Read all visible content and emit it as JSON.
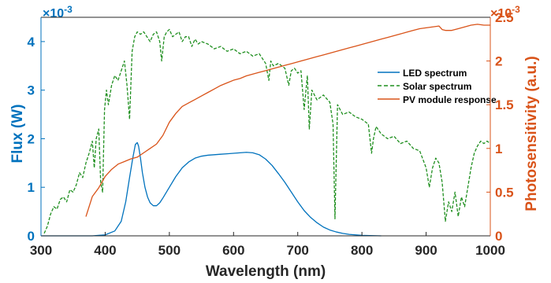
{
  "chart_data": {
    "type": "line",
    "xlabel": "Wavelength (nm)",
    "ylabel_left": "Flux (W)",
    "ylabel_right": "Photosensitivity (a.u.)",
    "left_multiplier": "×10-3",
    "right_multiplier": "×10-3",
    "xlim": [
      300,
      1000
    ],
    "ylim_left": [
      0,
      4.5
    ],
    "ylim_right": [
      0,
      2.5
    ],
    "x_ticks": [
      "300",
      "400",
      "500",
      "600",
      "700",
      "800",
      "900",
      "1000"
    ],
    "y_ticks_left": [
      "0",
      "1",
      "2",
      "3",
      "4"
    ],
    "y_ticks_right": [
      "0",
      "0.5",
      "1",
      "1.5",
      "2",
      "2.5"
    ],
    "legend_position": "right",
    "series": [
      {
        "name": "LED spectrum",
        "axis": "left",
        "style": "solid",
        "color": "#0072bd",
        "x": [
          300,
          380,
          400,
          415,
          425,
          432,
          438,
          443,
          447,
          450,
          452,
          455,
          458,
          462,
          466,
          470,
          475,
          480,
          485,
          490,
          500,
          510,
          520,
          530,
          540,
          550,
          560,
          570,
          580,
          590,
          600,
          610,
          620,
          630,
          640,
          650,
          660,
          670,
          680,
          690,
          700,
          710,
          720,
          730,
          740,
          750,
          760,
          770,
          780,
          800,
          830
        ],
        "y": [
          0,
          0,
          0.02,
          0.1,
          0.3,
          0.7,
          1.2,
          1.6,
          1.88,
          1.92,
          1.85,
          1.6,
          1.3,
          1.0,
          0.8,
          0.68,
          0.62,
          0.62,
          0.68,
          0.78,
          1.0,
          1.22,
          1.4,
          1.52,
          1.6,
          1.64,
          1.66,
          1.67,
          1.68,
          1.69,
          1.7,
          1.71,
          1.72,
          1.71,
          1.67,
          1.58,
          1.45,
          1.28,
          1.1,
          0.9,
          0.7,
          0.52,
          0.38,
          0.27,
          0.18,
          0.12,
          0.08,
          0.05,
          0.03,
          0.01,
          0
        ]
      },
      {
        "name": "Solar spectrum",
        "axis": "left",
        "style": "dashed",
        "color": "#1f8f1f",
        "x": [
          305,
          310,
          315,
          320,
          325,
          330,
          335,
          340,
          345,
          350,
          355,
          360,
          365,
          370,
          375,
          380,
          383,
          386,
          390,
          393,
          396,
          399,
          402,
          405,
          410,
          415,
          420,
          425,
          430,
          434,
          438,
          442,
          446,
          450,
          455,
          460,
          465,
          470,
          475,
          480,
          485,
          488,
          492,
          496,
          500,
          505,
          510,
          515,
          520,
          525,
          530,
          535,
          540,
          545,
          550,
          560,
          570,
          580,
          590,
          600,
          610,
          620,
          630,
          640,
          650,
          655,
          658,
          662,
          670,
          680,
          686,
          690,
          695,
          700,
          705,
          710,
          715,
          718,
          722,
          730,
          740,
          750,
          755,
          758,
          762,
          770,
          780,
          790,
          800,
          810,
          815,
          818,
          822,
          830,
          840,
          850,
          860,
          870,
          880,
          890,
          900,
          905,
          910,
          915,
          920,
          925,
          930,
          935,
          940,
          945,
          950,
          955,
          960,
          965,
          970,
          975,
          980,
          985,
          990,
          995,
          1000
        ],
        "y": [
          0.05,
          0.2,
          0.45,
          0.6,
          0.55,
          0.75,
          0.8,
          0.7,
          0.95,
          0.9,
          1.05,
          1.3,
          1.2,
          1.5,
          1.7,
          1.95,
          1.4,
          2.0,
          2.2,
          1.1,
          0.9,
          2.6,
          3.0,
          2.7,
          3.1,
          3.3,
          3.2,
          3.4,
          3.6,
          3.1,
          2.4,
          3.8,
          4.1,
          4.2,
          4.15,
          4.2,
          4.1,
          4.0,
          4.15,
          4.2,
          4.0,
          3.6,
          4.1,
          4.2,
          4.25,
          4.1,
          4.15,
          4.2,
          4.0,
          4.1,
          4.1,
          3.9,
          4.05,
          3.95,
          4.0,
          3.95,
          3.85,
          3.9,
          3.8,
          3.85,
          3.75,
          3.8,
          3.7,
          3.75,
          3.55,
          3.2,
          3.6,
          3.5,
          3.55,
          3.45,
          3.1,
          3.4,
          3.45,
          3.35,
          3.4,
          2.6,
          3.3,
          2.2,
          3.0,
          2.8,
          2.9,
          2.75,
          2.3,
          0.35,
          2.7,
          2.5,
          2.55,
          2.45,
          2.4,
          2.3,
          1.7,
          2.0,
          2.25,
          2.1,
          2.0,
          2.05,
          1.9,
          1.95,
          1.8,
          1.75,
          1.4,
          1.0,
          1.4,
          1.6,
          1.5,
          1.1,
          0.3,
          0.7,
          0.5,
          0.9,
          0.4,
          0.8,
          0.6,
          1.0,
          1.4,
          1.7,
          1.85,
          1.95,
          1.9,
          1.95,
          1.9
        ]
      },
      {
        "name": "PV module response",
        "axis": "right",
        "style": "solid",
        "color": "#d95319",
        "x": [
          370,
          380,
          390,
          400,
          410,
          420,
          430,
          440,
          450,
          460,
          470,
          480,
          490,
          500,
          510,
          520,
          530,
          540,
          550,
          560,
          570,
          580,
          590,
          600,
          610,
          620,
          630,
          640,
          650,
          660,
          670,
          680,
          690,
          700,
          710,
          720,
          730,
          740,
          750,
          760,
          770,
          780,
          790,
          800,
          810,
          820,
          830,
          840,
          850,
          860,
          870,
          880,
          890,
          900,
          910,
          920,
          925,
          930,
          940,
          950,
          960,
          970,
          980,
          990,
          1000
        ],
        "y": [
          0.22,
          0.45,
          0.55,
          0.68,
          0.76,
          0.82,
          0.85,
          0.88,
          0.9,
          0.95,
          1.0,
          1.05,
          1.15,
          1.3,
          1.4,
          1.48,
          1.52,
          1.56,
          1.6,
          1.64,
          1.68,
          1.72,
          1.75,
          1.78,
          1.8,
          1.83,
          1.85,
          1.87,
          1.89,
          1.91,
          1.93,
          1.95,
          1.97,
          1.99,
          2.01,
          2.03,
          2.05,
          2.07,
          2.09,
          2.11,
          2.13,
          2.15,
          2.17,
          2.19,
          2.21,
          2.23,
          2.25,
          2.27,
          2.29,
          2.31,
          2.33,
          2.35,
          2.37,
          2.38,
          2.39,
          2.4,
          2.36,
          2.35,
          2.35,
          2.37,
          2.39,
          2.41,
          2.42,
          2.41,
          2.41
        ]
      }
    ]
  }
}
